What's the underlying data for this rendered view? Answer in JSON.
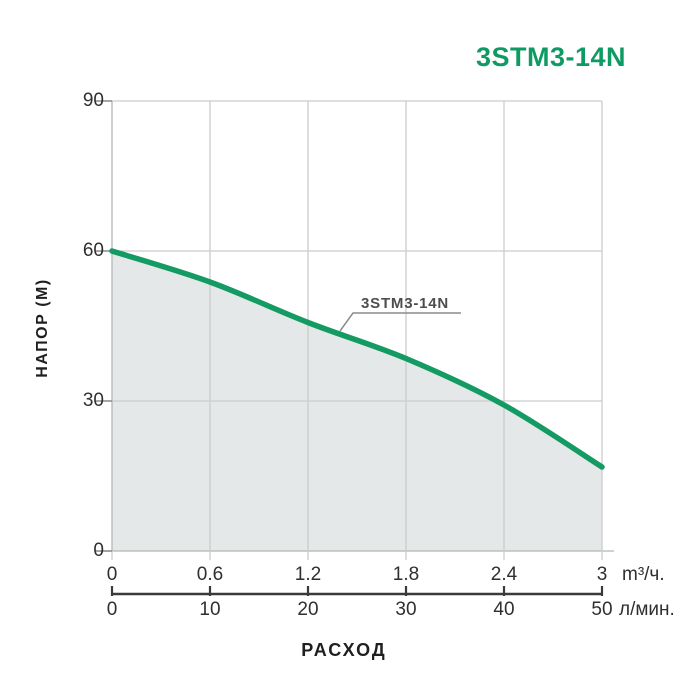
{
  "header": {
    "title": "3STM3-14N"
  },
  "colors": {
    "title_green": "#0e9b63",
    "curve_green": "#149a63",
    "area_fill": "#e4e8e9",
    "gridline": "#cccccc",
    "axis_line": "#b5b5b5",
    "tick_mark": "#8f8f8f",
    "dark_axis": "#3a3a3a",
    "text_dark": "#2f2f2f",
    "curve_label_text": "#4d4d4d",
    "callout_line": "#8c8c8c"
  },
  "chart_data": {
    "type": "area",
    "title": "3STM3-14N",
    "curve_label": "3STM3-14N",
    "xlabel": "РАСХОД",
    "ylabel": "НАПОР (М)",
    "xlim": [
      0,
      3
    ],
    "ylim": [
      0,
      90
    ],
    "grid": true,
    "legend": "none",
    "x_m3h": [
      0,
      0.6,
      1.2,
      1.8,
      2.4,
      3.0
    ],
    "x_lmin": [
      0,
      10,
      20,
      30,
      40,
      50
    ],
    "series": [
      {
        "name": "3STM3-14N",
        "values_head_m": [
          60,
          53.8,
          45.7,
          38.5,
          29.2,
          16.8
        ]
      }
    ],
    "x_axis_m3h": {
      "unit": "m³/ч.",
      "ticks": [
        "0",
        "0.6",
        "1.2",
        "1.8",
        "2.4",
        "3"
      ]
    },
    "x_axis_lmin": {
      "unit": "л/мин.",
      "ticks": [
        "0",
        "10",
        "20",
        "30",
        "40",
        "50"
      ]
    },
    "y_ticks": [
      "0",
      "30",
      "60",
      "90"
    ]
  }
}
